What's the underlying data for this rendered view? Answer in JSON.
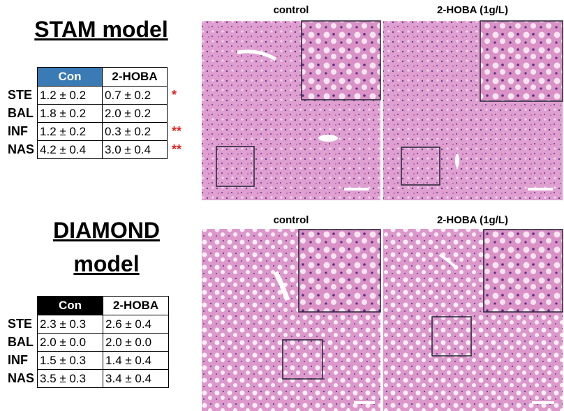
{
  "stam": {
    "title": "STAM model",
    "table": {
      "header": [
        "Con",
        "2-HOBA"
      ],
      "rows": [
        {
          "label": "STE",
          "con": "1.2 ± 0.2",
          "hoba": "0.7 ± 0.2",
          "sig": "*"
        },
        {
          "label": "BAL",
          "con": "1.8 ± 0.2",
          "hoba": "2.0 ± 0.2"
        },
        {
          "label": "INF",
          "con": "1.2 ± 0.2",
          "hoba": "0.3 ± 0.2",
          "sig": "**"
        },
        {
          "label": "NAS",
          "con": "4.2 ± 0.4",
          "hoba": "3.0 ± 0.4",
          "sig": "**"
        }
      ]
    },
    "images": [
      "control",
      "2-HOBA (1g/L)"
    ]
  },
  "diamond": {
    "title_lines": [
      "DIAMOND",
      "model"
    ],
    "table": {
      "header": [
        "Con",
        "2-HOBA"
      ],
      "rows": [
        {
          "label": "STE",
          "con": "2.3 ± 0.3",
          "hoba": "2.6 ± 0.4"
        },
        {
          "label": "BAL",
          "con": "2.0 ± 0.0",
          "hoba": "2.0 ± 0.0"
        },
        {
          "label": "INF",
          "con": "1.5 ± 0.3",
          "hoba": "1.4 ± 0.4"
        },
        {
          "label": "NAS",
          "con": "3.5 ± 0.3",
          "hoba": "3.4 ± 0.4"
        }
      ]
    },
    "images": [
      "control",
      "2-HOBA (1g/L)"
    ]
  }
}
